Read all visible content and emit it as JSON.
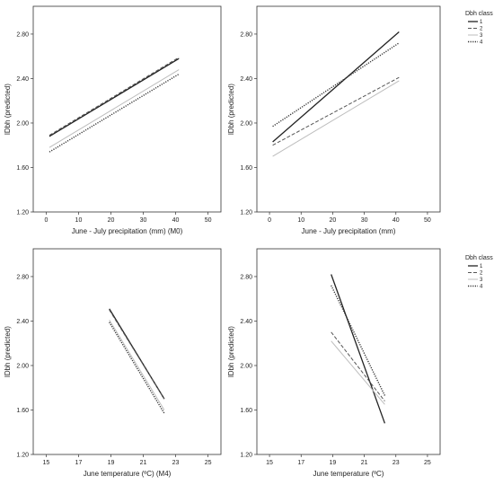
{
  "legend": {
    "title": "Dbh class",
    "entries": [
      {
        "label": "1",
        "dash": "solid",
        "color": "#222222"
      },
      {
        "label": "2",
        "dash": "dashed",
        "color": "#555555"
      },
      {
        "label": "3",
        "dash": "light",
        "color": "#bdbdbd"
      },
      {
        "label": "4",
        "dash": "dotted",
        "color": "#333333"
      }
    ]
  },
  "chart_data": [
    {
      "type": "line",
      "xlabel": "June - July precipitation (mm) (M0)",
      "ylabel": "lDbh (predicted)",
      "xlim": [
        -4,
        54
      ],
      "ylim": [
        1.2,
        3.05
      ],
      "xticks": [
        "0",
        "10",
        "20",
        "30",
        "40",
        "50"
      ],
      "yticks": [
        "1.20",
        "1.60",
        "2.00",
        "2.40",
        "2.80"
      ],
      "legend": false,
      "series": [
        {
          "x": [
            1,
            41
          ],
          "y": [
            1.88,
            2.58
          ]
        },
        {
          "x": [
            1,
            41
          ],
          "y": [
            1.89,
            2.59
          ]
        },
        {
          "x": [
            1,
            41
          ],
          "y": [
            1.78,
            2.48
          ]
        },
        {
          "x": [
            1,
            41
          ],
          "y": [
            1.74,
            2.44
          ]
        }
      ]
    },
    {
      "type": "line",
      "xlabel": "June - July precipitation (mm)",
      "ylabel": "lDbh (predicted)",
      "xlim": [
        -4,
        54
      ],
      "ylim": [
        1.2,
        3.05
      ],
      "xticks": [
        "0",
        "10",
        "20",
        "30",
        "40",
        "50"
      ],
      "yticks": [
        "1.20",
        "1.60",
        "2.00",
        "2.40",
        "2.80"
      ],
      "legend": true,
      "series": [
        {
          "name": "1",
          "x": [
            1,
            41
          ],
          "y": [
            1.83,
            2.82
          ]
        },
        {
          "name": "2",
          "x": [
            1,
            41
          ],
          "y": [
            1.8,
            2.41
          ]
        },
        {
          "name": "3",
          "x": [
            1,
            41
          ],
          "y": [
            1.7,
            2.38
          ]
        },
        {
          "name": "4",
          "x": [
            1,
            41
          ],
          "y": [
            1.97,
            2.72
          ]
        }
      ]
    },
    {
      "type": "line",
      "xlabel": "June temperature (ºC) (M4)",
      "ylabel": "lDbh (predicted)",
      "xlim": [
        14.2,
        25.8
      ],
      "ylim": [
        1.2,
        3.05
      ],
      "xticks": [
        "15",
        "17",
        "19",
        "21",
        "23",
        "25"
      ],
      "yticks": [
        "1.20",
        "1.60",
        "2.00",
        "2.40",
        "2.80"
      ],
      "legend": false,
      "series": [
        {
          "x": [
            18.9,
            22.3
          ],
          "y": [
            2.51,
            1.7
          ]
        },
        {
          "x": [
            18.9,
            22.3
          ],
          "y": [
            2.5,
            1.7
          ]
        },
        {
          "x": [
            18.9,
            22.3
          ],
          "y": [
            2.41,
            1.6
          ]
        },
        {
          "x": [
            18.9,
            22.3
          ],
          "y": [
            2.39,
            1.57
          ]
        }
      ]
    },
    {
      "type": "line",
      "xlabel": "June temperature (ºC)",
      "ylabel": "lDbh (predicted)",
      "xlim": [
        14.2,
        25.8
      ],
      "ylim": [
        1.2,
        3.05
      ],
      "xticks": [
        "15",
        "17",
        "19",
        "21",
        "23",
        "25"
      ],
      "yticks": [
        "1.20",
        "1.60",
        "2.00",
        "2.40",
        "2.80"
      ],
      "legend": true,
      "series": [
        {
          "name": "1",
          "x": [
            18.9,
            22.3
          ],
          "y": [
            2.82,
            1.48
          ]
        },
        {
          "name": "2",
          "x": [
            18.9,
            22.3
          ],
          "y": [
            2.3,
            1.68
          ]
        },
        {
          "name": "3",
          "x": [
            18.9,
            22.3
          ],
          "y": [
            2.22,
            1.65
          ]
        },
        {
          "name": "4",
          "x": [
            18.9,
            22.3
          ],
          "y": [
            2.72,
            1.73
          ]
        }
      ]
    }
  ]
}
